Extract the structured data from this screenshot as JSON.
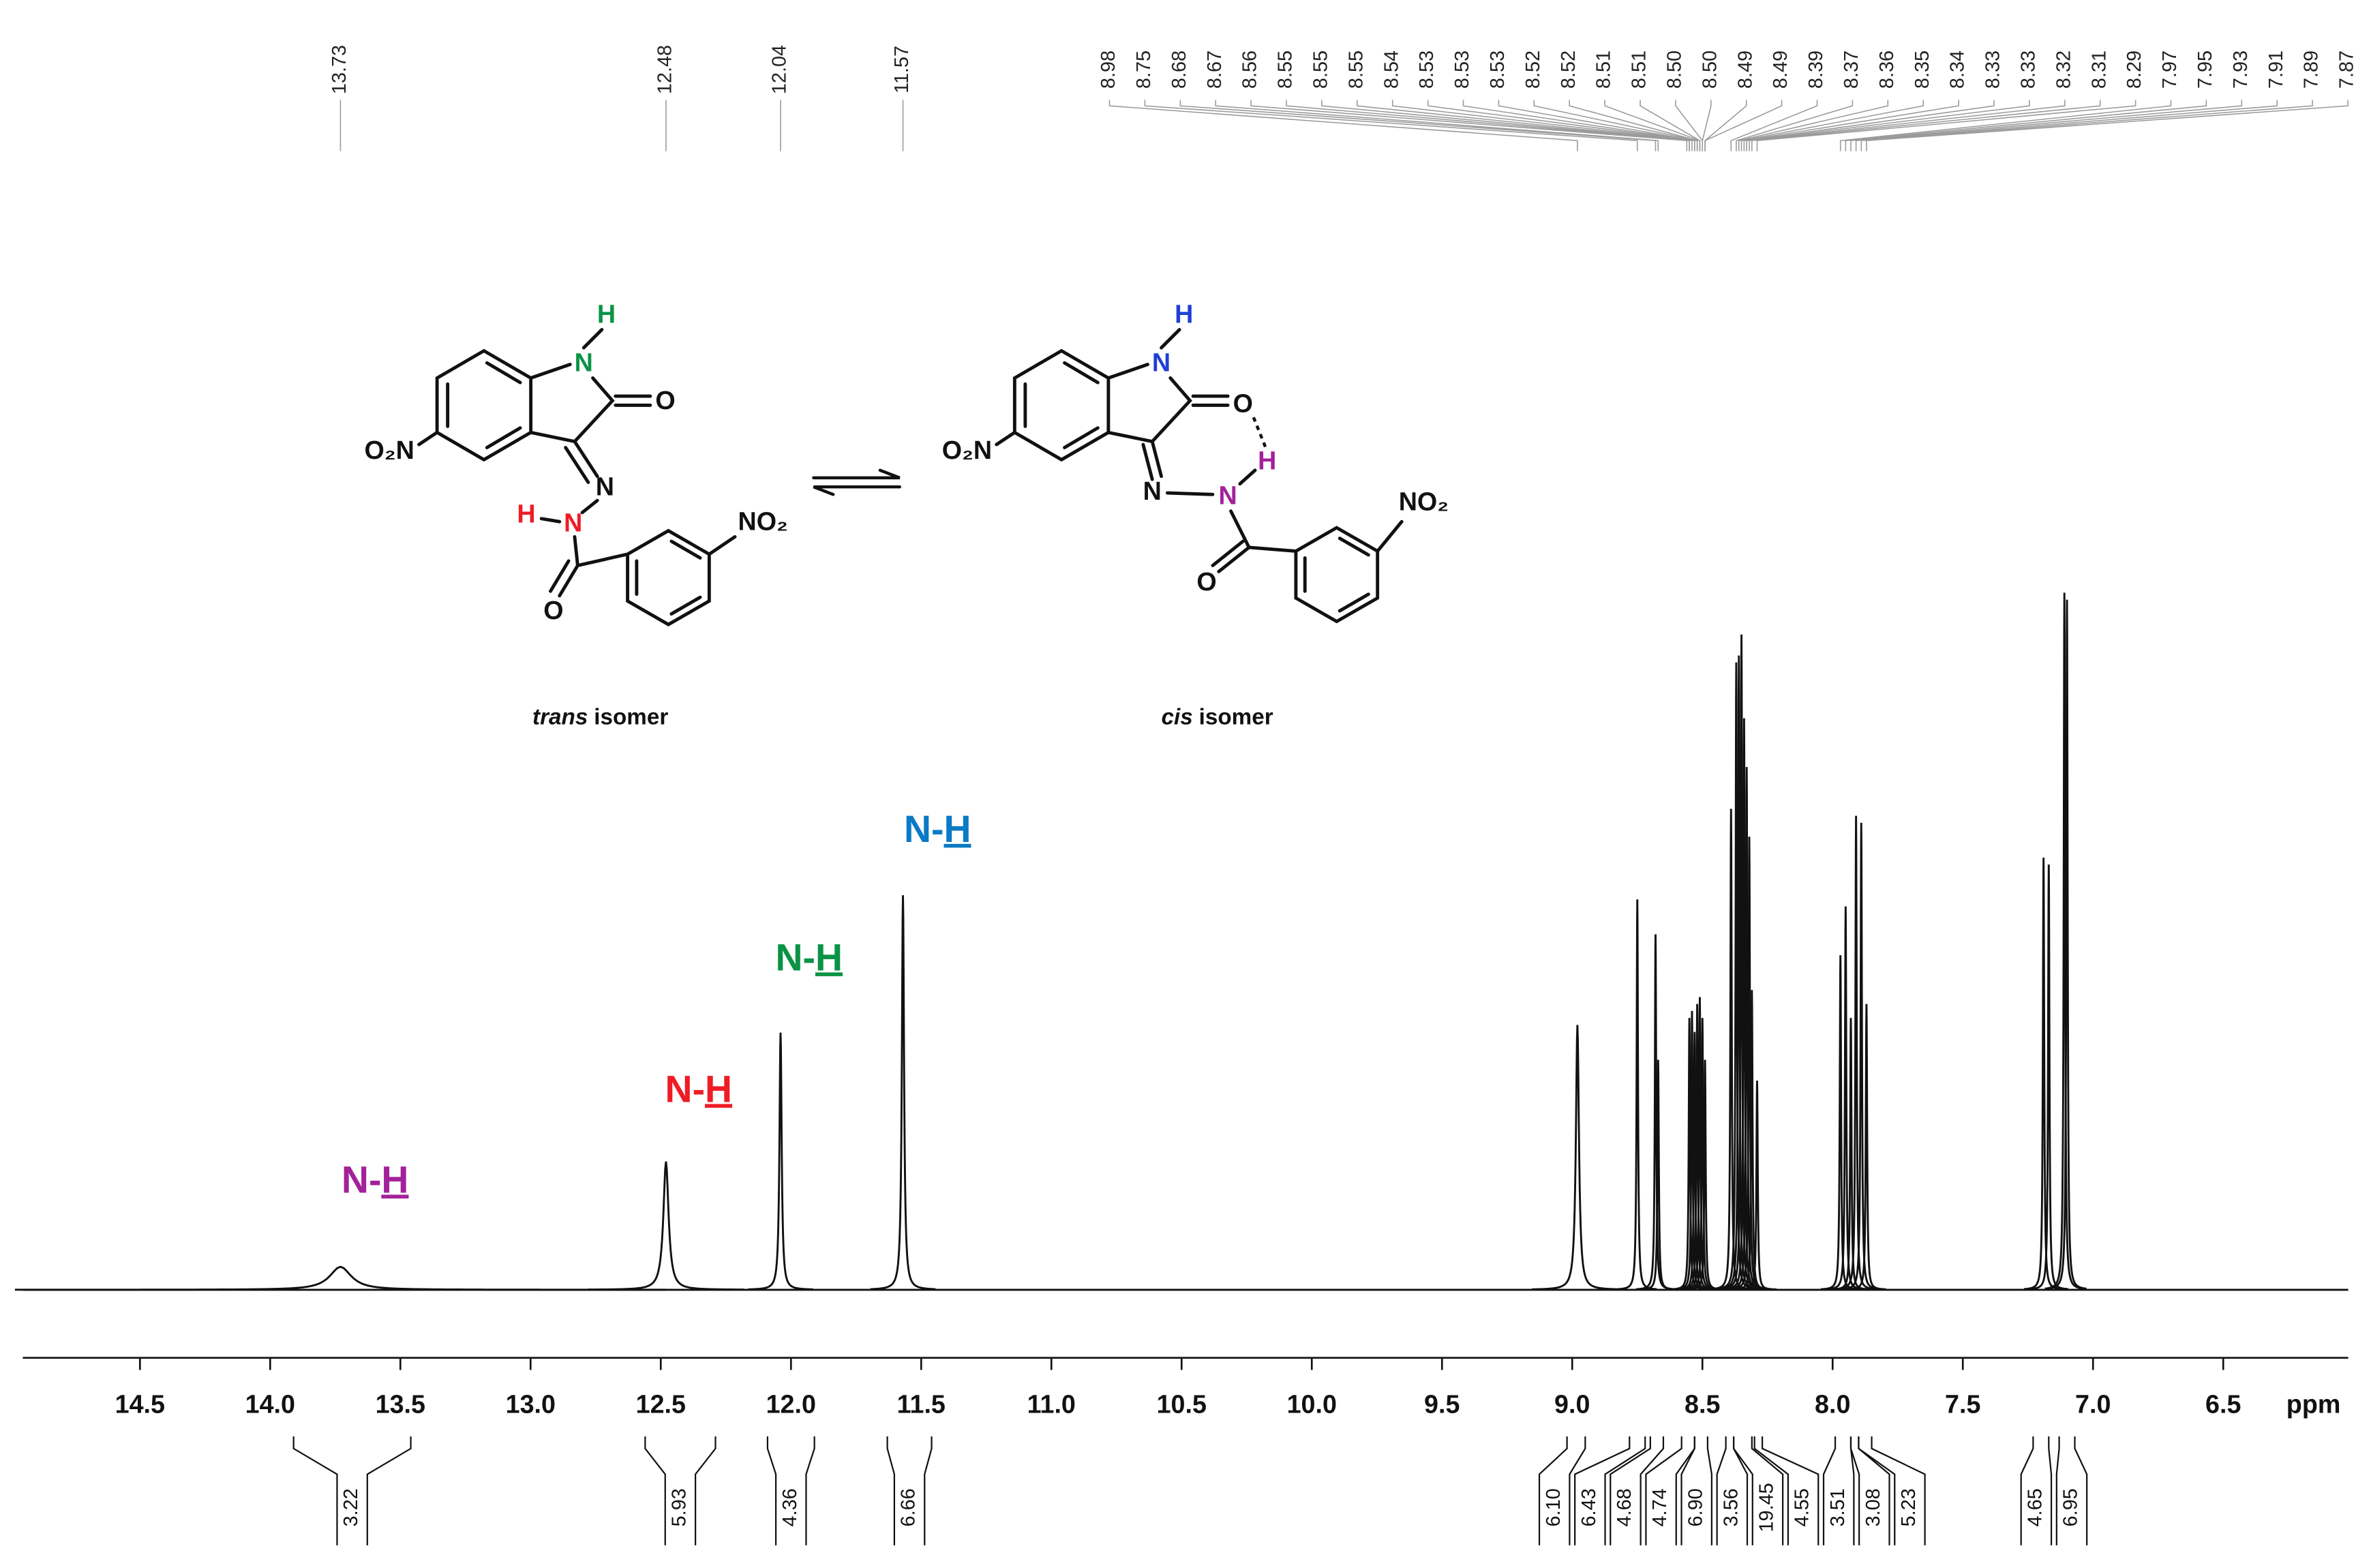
{
  "chart_data": {
    "type": "spectrum",
    "xlabel": "ppm",
    "xlim": [
      14.95,
      6.02
    ],
    "xticks": [
      14.5,
      {
        "value": 14,
        "label": "14.0"
      },
      13.5,
      {
        "value": 13,
        "label": "13.0"
      },
      12.5,
      {
        "value": 12,
        "label": "12.0"
      },
      11.5,
      {
        "value": 11,
        "label": "11.0"
      },
      10.5,
      {
        "value": 10,
        "label": "10.0"
      },
      9.5,
      {
        "value": 9,
        "label": "9.0"
      },
      8.5,
      {
        "value": 8,
        "label": "8.0"
      },
      7.5,
      {
        "value": 7,
        "label": "7.0"
      },
      6.5
    ],
    "color": "#111111",
    "peaks": {
      "x": [
        13.73,
        12.48,
        12.04,
        11.57,
        8.98,
        8.75,
        8.68,
        8.67,
        8.55,
        8.54,
        8.53,
        8.52,
        8.51,
        8.5,
        8.49,
        8.39,
        8.37,
        8.36,
        8.35,
        8.34,
        8.33,
        8.32,
        8.31,
        8.29,
        7.97,
        7.95,
        7.93,
        7.91,
        7.89,
        7.87,
        7.19,
        7.17,
        7.11,
        7.1
      ],
      "values": [
        3.3,
        18.4,
        36.9,
        56.6,
        38,
        56,
        51,
        33,
        39,
        40,
        37,
        41,
        42,
        39,
        33,
        69,
        90,
        91,
        94,
        82,
        75,
        65,
        43,
        30,
        48,
        55,
        39,
        68,
        67,
        41,
        62,
        61,
        100,
        99
      ],
      "widths": [
        0.05,
        0.012,
        0.005,
        0.005,
        0.007,
        0.003,
        0.003,
        0.003,
        0.003,
        0.003,
        0.003,
        0.003,
        0.003,
        0.003,
        0.003,
        0.003,
        0.003,
        0.003,
        0.003,
        0.003,
        0.003,
        0.003,
        0.003,
        0.003,
        0.003,
        0.003,
        0.003,
        0.003,
        0.003,
        0.003,
        0.003,
        0.003,
        0.003,
        0.003
      ]
    },
    "peak_labels": {
      "values": [
        13.73,
        12.48,
        12.04,
        11.57,
        8.98,
        8.75,
        8.68,
        8.67,
        8.56,
        8.55,
        8.55,
        8.55,
        8.54,
        8.53,
        8.53,
        8.53,
        8.52,
        8.52,
        8.51,
        8.51,
        8.5,
        8.5,
        8.49,
        8.49,
        8.39,
        8.37,
        8.36,
        8.35,
        8.34,
        8.33,
        8.33,
        8.32,
        8.31,
        8.29,
        7.97,
        7.95,
        7.93,
        7.91,
        7.89,
        7.87
      ],
      "value_labels": [
        "13.73",
        "12.48",
        "12.04",
        "11.57",
        "8.98",
        "8.75",
        "8.68",
        "8.67",
        "8.56",
        "8.55",
        "8.55",
        "8.55",
        "8.54",
        "8.53",
        "8.53",
        "8.53",
        "8.52",
        "8.52",
        "8.51",
        "8.51",
        "8.50",
        "8.50",
        "8.49",
        "8.49",
        "8.39",
        "8.37",
        "8.36",
        "8.35",
        "8.34",
        "8.33",
        "8.33",
        "8.32",
        "8.31",
        "8.29",
        "7.97",
        "7.95",
        "7.93",
        "7.91",
        "7.89",
        "7.87"
      ]
    },
    "integrals": {
      "from": [
        13.91,
        12.56,
        12.09,
        11.63,
        9.02,
        8.78,
        8.7,
        8.58,
        8.53,
        8.41,
        8.38,
        8.3,
        7.99,
        7.93,
        7.9,
        7.23,
        7.13
      ],
      "to": [
        13.46,
        12.29,
        11.91,
        11.46,
        8.95,
        8.72,
        8.65,
        8.53,
        8.48,
        8.38,
        8.31,
        8.27,
        7.93,
        7.9,
        7.85,
        7.17,
        7.07
      ],
      "values": [
        3.22,
        5.93,
        4.36,
        6.66,
        6.1,
        6.43,
        4.68,
        4.74,
        6.9,
        3.56,
        19.45,
        4.55,
        3.51,
        3.08,
        5.23,
        4.65,
        6.95
      ],
      "value_labels": [
        "3.22",
        "5.93",
        "4.36",
        "6.66",
        "6.10",
        "6.43",
        "4.68",
        "4.74",
        "6.90",
        "3.56",
        "19.45",
        "4.55",
        "3.51",
        "3.08",
        "5.23",
        "4.65",
        "6.95"
      ]
    },
    "nh_labels": [
      {
        "prefix": "N-",
        "atom": "H",
        "color": "#a3219a"
      },
      {
        "prefix": "N-",
        "atom": "H",
        "color": "#ee1c25"
      },
      {
        "prefix": "N-",
        "atom": "H",
        "color": "#0a9345"
      },
      {
        "prefix": "N-",
        "atom": "H",
        "color": "#0a7ac6"
      }
    ],
    "structures": [
      {
        "atoms": [
          "H",
          "N",
          "O",
          "O₂N",
          "N",
          "H",
          "N",
          "O",
          "NO₂"
        ],
        "caption": [
          "trans",
          "isomer"
        ]
      },
      {
        "atoms": [
          "H",
          "N",
          "O",
          "H",
          "O₂N",
          "N",
          "N",
          "O",
          "NO₂"
        ],
        "caption": [
          "cis",
          "isomer"
        ]
      }
    ]
  }
}
